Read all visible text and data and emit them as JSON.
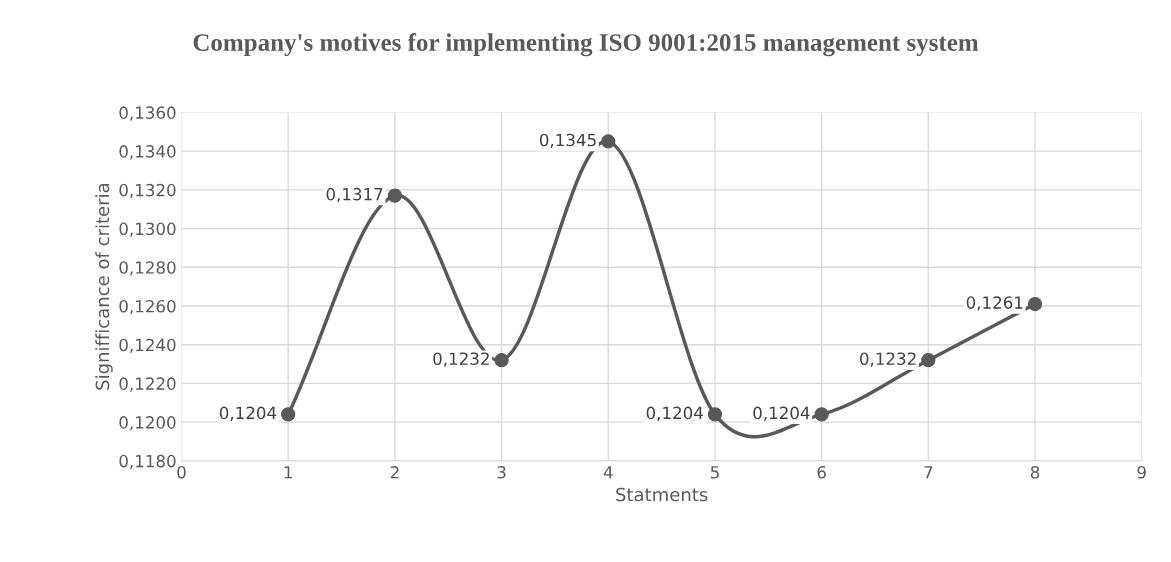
{
  "chart_data": {
    "type": "line",
    "title": "Company's motives for implementing ISO 9001:2015 management system",
    "xlabel": "Statments",
    "ylabel": "Signifficance of criteria",
    "x": [
      1,
      2,
      3,
      4,
      5,
      6,
      7,
      8
    ],
    "series": [
      {
        "color": "#595959",
        "values": [
          0.1204,
          0.1317,
          0.1232,
          0.1345,
          0.1204,
          0.1204,
          0.1232,
          0.1261
        ],
        "value_labels": [
          "0,1204",
          "0,1317",
          "0,1232",
          "0,1345",
          "0,1204",
          "0,1204",
          "0,1232",
          "0,1261"
        ]
      }
    ],
    "xlim": [
      0,
      9
    ],
    "xticks": [
      0,
      1,
      2,
      3,
      4,
      5,
      6,
      7,
      8,
      9
    ],
    "ylim": [
      0.118,
      0.136
    ],
    "yticks": [
      {
        "value": 0.118,
        "label": "0,1180"
      },
      {
        "value": 0.12,
        "label": "0,1200"
      },
      {
        "value": 0.122,
        "label": "0,1220"
      },
      {
        "value": 0.124,
        "label": "0,1240"
      },
      {
        "value": 0.126,
        "label": "0,1260"
      },
      {
        "value": 0.128,
        "label": "0,1280"
      },
      {
        "value": 0.13,
        "label": "0,1300"
      },
      {
        "value": 0.132,
        "label": "0,1320"
      },
      {
        "value": 0.134,
        "label": "0,1340"
      },
      {
        "value": 0.136,
        "label": "0,1360"
      }
    ],
    "grid": true,
    "marker": "circle",
    "line_style": "solid",
    "legend": false
  }
}
